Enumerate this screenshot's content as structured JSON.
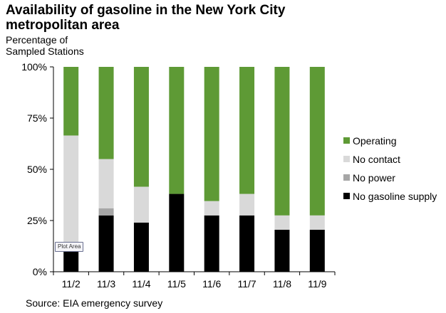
{
  "header": {
    "title": "Availability of gasoline in the New York City metropolitan area",
    "ylabel": "Percentage of\nSampled Stations"
  },
  "footer": {
    "source": "Source: EIA emergency survey"
  },
  "tooltip": {
    "text": "Plot Area"
  },
  "colors": {
    "Operating": "#5e9a35",
    "No contact": "#d9d9d9",
    "No power": "#a6a6a6",
    "No gasoline supply": "#000000"
  },
  "chart_data": {
    "type": "bar",
    "stacked": true,
    "title": "Availability of gasoline in the New York City metropolitan area",
    "ylabel": "Percentage of Sampled Stations",
    "xlabel": "",
    "categories": [
      "11/2",
      "11/3",
      "11/4",
      "11/5",
      "11/6",
      "11/7",
      "11/8",
      "11/9"
    ],
    "ylim": [
      0,
      100
    ],
    "yticks": [
      "0%",
      "25%",
      "50%",
      "75%",
      "100%"
    ],
    "legend_position": "right",
    "series": [
      {
        "name": "No gasoline supply",
        "values": [
          10,
          27.5,
          24,
          38,
          27.5,
          27.5,
          20.5,
          20.5
        ]
      },
      {
        "name": "No power",
        "values": [
          0,
          3.5,
          0,
          0,
          0,
          0,
          0,
          0
        ]
      },
      {
        "name": "No contact",
        "values": [
          56.5,
          24,
          17.5,
          0,
          7,
          10.5,
          7,
          7
        ]
      },
      {
        "name": "Operating",
        "values": [
          33.5,
          45,
          58.5,
          62,
          65.5,
          62,
          72.5,
          72.5
        ]
      }
    ],
    "legend_order": [
      "Operating",
      "No contact",
      "No power",
      "No gasoline supply"
    ]
  }
}
